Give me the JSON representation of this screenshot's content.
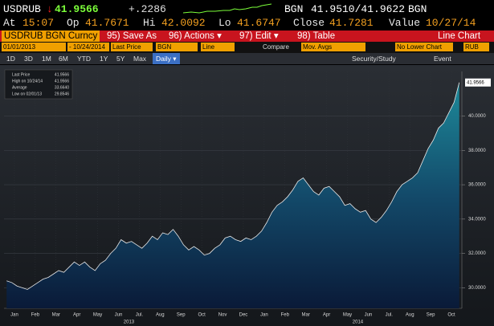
{
  "quote": {
    "ticker": "USDRUB",
    "arrow": "↓",
    "last": "41.9566",
    "change": "+.2286",
    "source": "BGN",
    "bid_ask": "41.9510/41.9622",
    "source2": "BGN"
  },
  "stats": [
    {
      "label": "At",
      "value": "15:07"
    },
    {
      "label": "Op",
      "value": "41.7671"
    },
    {
      "label": "Hi",
      "value": "42.0092"
    },
    {
      "label": "Lo",
      "value": "41.6747"
    },
    {
      "label": "Close",
      "value": "41.7281"
    },
    {
      "label": "Value",
      "value": "10/27/14"
    }
  ],
  "menu": {
    "security": "USDRUB BGN Curncy",
    "items": [
      "95) Save As",
      "96) Actions ▾",
      "97) Edit ▾",
      "98) Table"
    ],
    "view": "Line Chart"
  },
  "inputs": {
    "start": "01/01/2013",
    "end": "- 10/24/2014",
    "field": "Last Price",
    "source": "BGN",
    "style": "Line",
    "compare": "Compare",
    "mov_avgs": "Mov. Avgs",
    "lower": "No Lower Chart",
    "currency": "RUB"
  },
  "periods": [
    "1D",
    "3D",
    "1M",
    "6M",
    "YTD",
    "1Y",
    "5Y",
    "Max"
  ],
  "frequency": "Daily ▾",
  "tools": [
    "Security/Study",
    "Event"
  ],
  "chart_data": {
    "type": "area",
    "color": "#1d8a9a",
    "line_color": "#e8e8e8",
    "categories": [
      null,
      "Jan",
      null,
      null,
      null,
      "Feb",
      null,
      null,
      null,
      "Mar",
      null,
      null,
      null,
      "Apr",
      null,
      null,
      null,
      "May",
      null,
      null,
      null,
      "Jun",
      null,
      null,
      null,
      "Jul.",
      null,
      null,
      null,
      "Aug",
      null,
      null,
      null,
      "Sep",
      null,
      null,
      null,
      "Oct",
      null,
      null,
      null,
      "Nov",
      null,
      null,
      null,
      "Dec",
      null,
      null,
      null,
      "Jan",
      null,
      null,
      null,
      "Feb",
      null,
      null,
      null,
      "Mar",
      null,
      null,
      null,
      "Apr",
      null,
      null,
      null,
      "May",
      null,
      null,
      null,
      "Jun",
      null,
      null,
      null,
      "Jul.",
      null,
      null,
      null,
      "Aug",
      null,
      null,
      null,
      "Sep",
      null,
      null,
      null,
      "Oct",
      null,
      null
    ],
    "values": [
      30.4,
      30.3,
      30.1,
      30.0,
      29.9,
      30.1,
      30.3,
      30.5,
      30.6,
      30.8,
      31.0,
      30.9,
      31.2,
      31.5,
      31.3,
      31.5,
      31.2,
      31.0,
      31.4,
      31.6,
      32.0,
      32.3,
      32.8,
      32.6,
      32.7,
      32.5,
      32.3,
      32.6,
      33.0,
      32.8,
      33.2,
      33.1,
      33.4,
      33.0,
      32.5,
      32.2,
      32.4,
      32.2,
      31.9,
      32.0,
      32.3,
      32.5,
      32.9,
      33.0,
      32.8,
      32.7,
      32.9,
      32.8,
      33.0,
      33.3,
      33.8,
      34.4,
      34.8,
      35.0,
      35.3,
      35.7,
      36.2,
      36.4,
      36.0,
      35.6,
      35.4,
      35.8,
      35.9,
      35.6,
      35.3,
      34.8,
      34.9,
      34.6,
      34.4,
      34.5,
      34.0,
      33.8,
      34.1,
      34.5,
      35.0,
      35.6,
      36.0,
      36.2,
      36.4,
      36.7,
      37.4,
      38.1,
      38.6,
      39.3,
      39.6,
      40.2,
      40.8,
      41.9566
    ],
    "years": [
      "2013",
      "2014"
    ],
    "ylim": [
      28.8,
      42.6
    ],
    "yticks": [
      {
        "value": 30,
        "label": "30.0000"
      },
      {
        "value": 32,
        "label": "32.0000"
      },
      {
        "value": 34,
        "label": "34.0000"
      },
      {
        "value": 36,
        "label": "36.0000"
      },
      {
        "value": 38,
        "label": "38.0000"
      },
      {
        "value": 40,
        "label": "40.0000"
      }
    ],
    "grid": true,
    "last_tag": "41.9566",
    "legend": [
      {
        "label": "Last Price",
        "value": "41.9566"
      },
      {
        "label": "High on 10/24/14",
        "value": "41.9566"
      },
      {
        "label": "Average",
        "value": "33.6640"
      },
      {
        "label": "Low on 02/01/13",
        "value": "29.8546"
      }
    ]
  }
}
